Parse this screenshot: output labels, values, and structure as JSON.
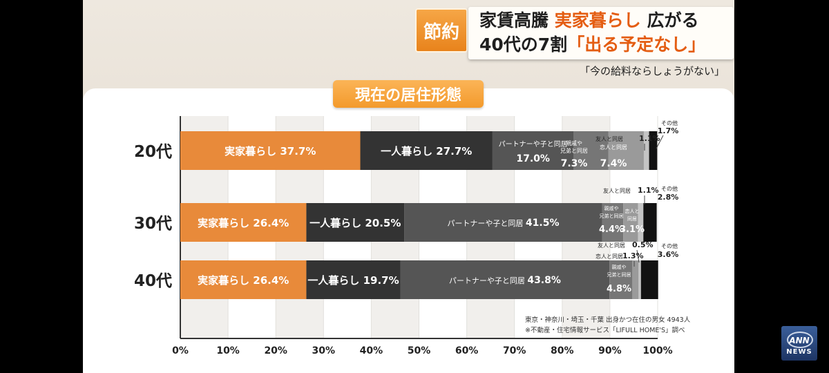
{
  "headline": {
    "tag": "節約",
    "line1_a": "家賃高騰 ",
    "line1_accent": "実家暮らし",
    "line1_b": " 広がる",
    "line2_a": "40代の7割",
    "line2_accent": "「出る予定なし」",
    "quote": "「今の給料ならしょうがない」"
  },
  "source": {
    "line1": "東京・神奈川・埼玉・千葉 出身かつ在住の男女 4943人",
    "line2": "※不動産・住宅情報サービス「LIFULL HOME'S」調べ"
  },
  "logo": {
    "top": "ANN",
    "bottom": "NEWS"
  },
  "colors": {
    "parents": "#e88a3a",
    "alone": "#333333",
    "partner": "#555555",
    "relatives": "#767676",
    "lover": "#9a9a9a",
    "friends": "#c4c4c4",
    "other": "#121212"
  },
  "chart_data": {
    "type": "bar",
    "stacked": true,
    "orientation": "horizontal",
    "title": "現在の居住形態",
    "categories": [
      "20代",
      "30代",
      "40代"
    ],
    "xlim": [
      0,
      100
    ],
    "xticks": [
      "0%",
      "10%",
      "20%",
      "30%",
      "40%",
      "50%",
      "60%",
      "70%",
      "80%",
      "90%",
      "100%"
    ],
    "series": [
      {
        "name": "実家暮らし",
        "values": [
          37.7,
          26.4,
          26.4
        ]
      },
      {
        "name": "一人暮らし",
        "values": [
          27.7,
          20.5,
          19.7
        ]
      },
      {
        "name": "パートナーや子と同居",
        "values": [
          17.0,
          41.5,
          43.8
        ]
      },
      {
        "name": "親戚や兄弟と同居",
        "values": [
          7.3,
          4.4,
          4.8
        ]
      },
      {
        "name": "恋人と同居",
        "values": [
          7.4,
          3.1,
          1.3
        ]
      },
      {
        "name": "友人と同居",
        "values": [
          1.1,
          1.1,
          0.5
        ]
      },
      {
        "name": "その他",
        "values": [
          1.7,
          2.8,
          3.6
        ]
      }
    ],
    "value_labels": [
      [
        "実家暮らし 37.7%",
        "一人暮らし 27.7%",
        "17.0%",
        "7.3%",
        "7.4%",
        "1.1%",
        "1.7%"
      ],
      [
        "実家暮らし 26.4%",
        "一人暮らし 20.5%",
        "41.5%",
        "4.4%",
        "3.1%",
        "1.1%",
        "2.8%"
      ],
      [
        "実家暮らし 26.4%",
        "一人暮らし 19.7%",
        "43.8%",
        "4.8%",
        "1.3%",
        "0.5%",
        "3.6%"
      ]
    ],
    "segment_names": [
      [
        "",
        "",
        "パートナーや子と同居",
        "親戚や 兄弟と同居",
        "恋人と同居",
        "友人と同居",
        "その他"
      ],
      [
        "",
        "",
        "パートナーや子と同居",
        "親戚や 兄弟と同居",
        "恋人と 同居",
        "友人と同居",
        "その他"
      ],
      [
        "",
        "",
        "パートナーや子と同居",
        "親戚や 兄弟と同居",
        "恋人と同居",
        "友人と同居",
        "その他"
      ]
    ]
  }
}
